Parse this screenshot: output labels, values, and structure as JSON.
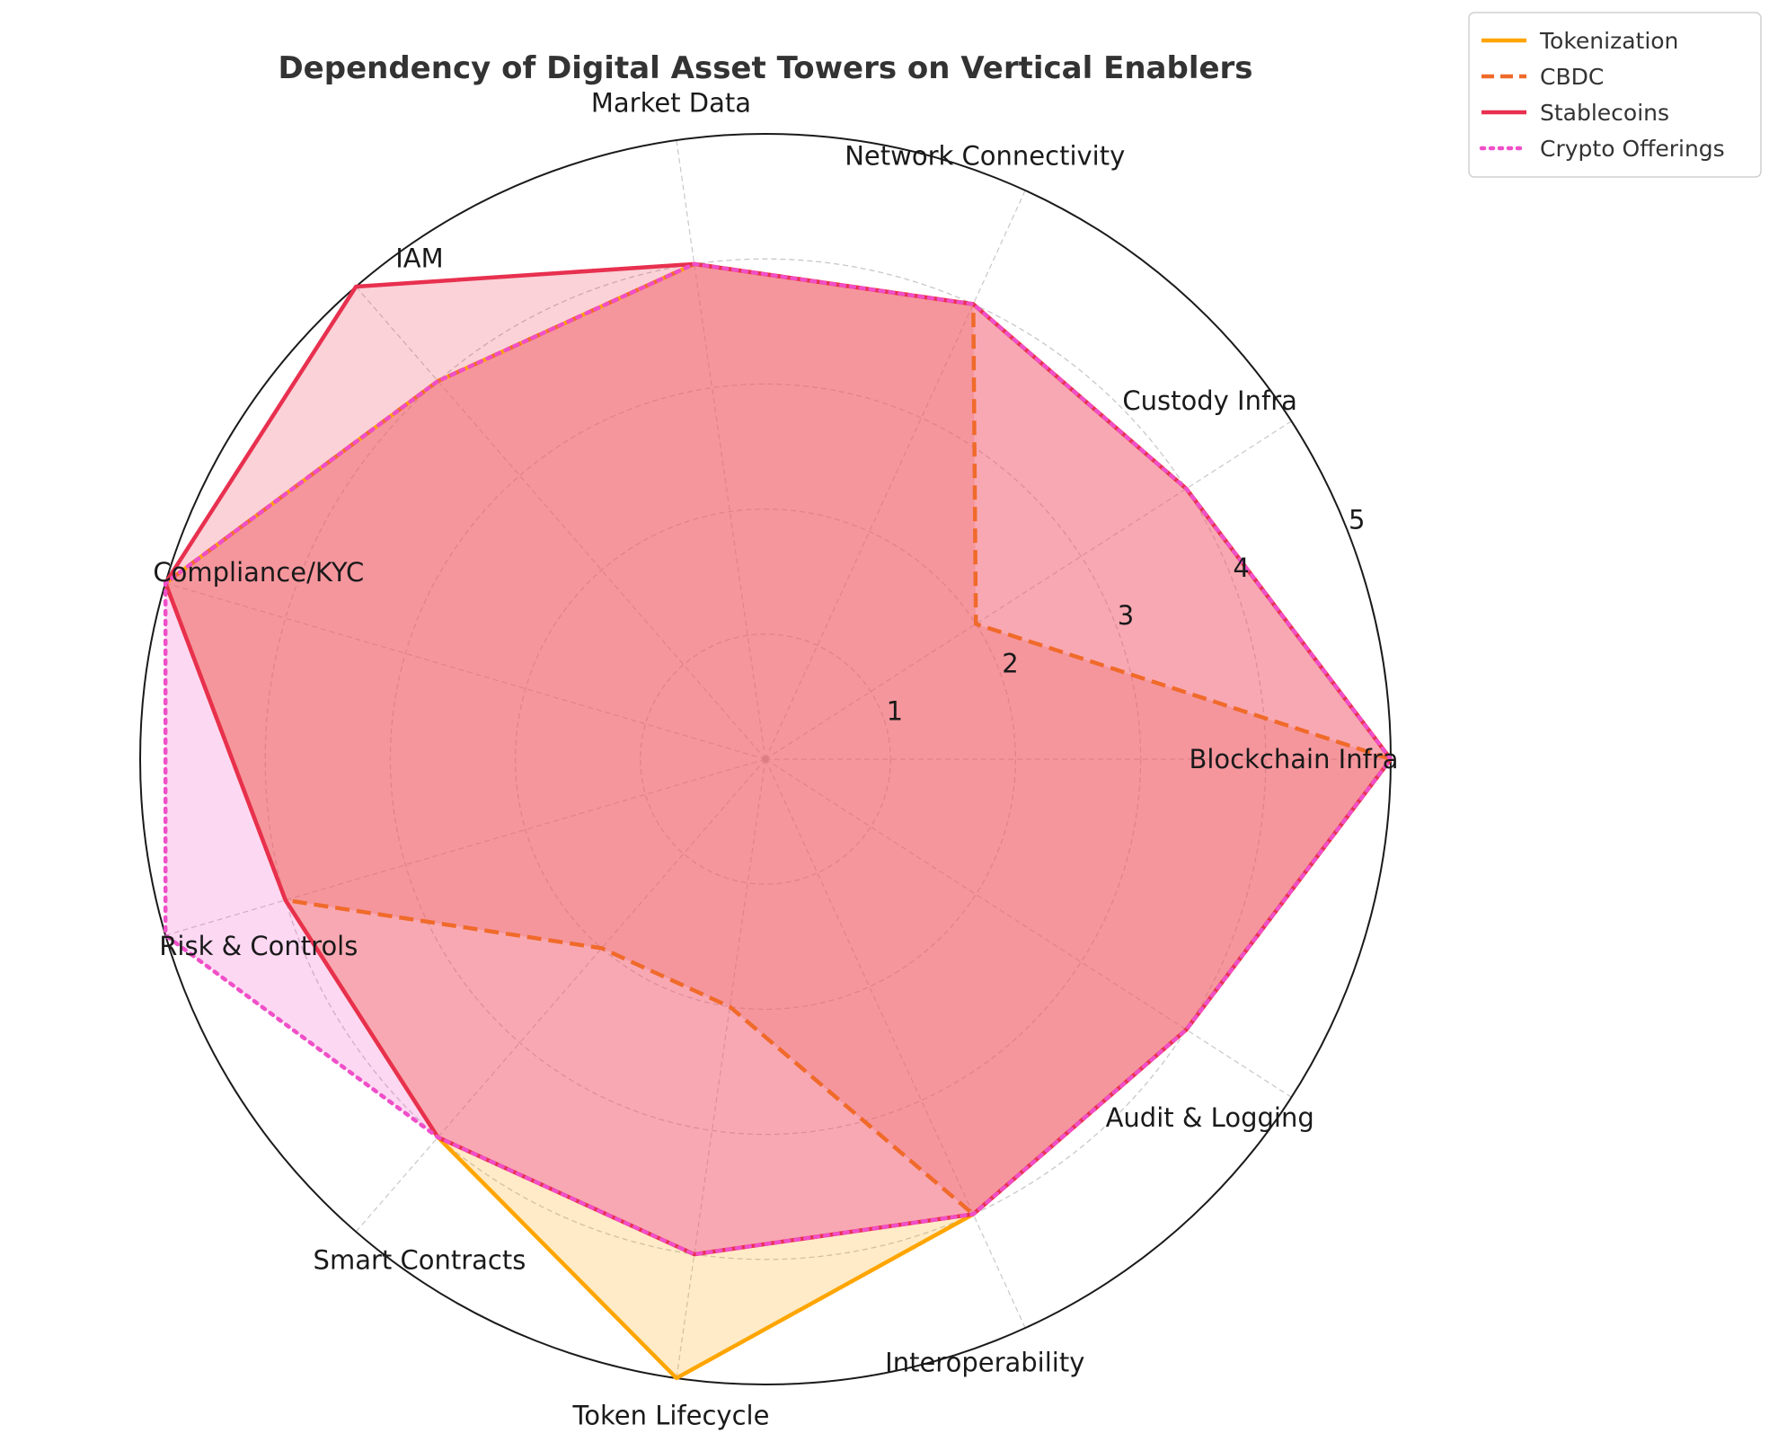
{
  "chart_data": {
    "type": "radar",
    "title": "Dependency of Digital Asset Towers on Vertical Enablers",
    "categories": [
      "Blockchain Infra",
      "Custody Infra",
      "Network Connectivity",
      "Market Data",
      "IAM",
      "Compliance/KYC",
      "Risk & Controls",
      "Smart Contracts",
      "Token Lifecycle",
      "Interoperability",
      "Audit & Logging"
    ],
    "rlim": [
      0,
      5
    ],
    "rticks": [
      "1",
      "2",
      "3",
      "4",
      "5"
    ],
    "grid": true,
    "legend_position": "top-right",
    "series": [
      {
        "name": "Tokenization",
        "values": [
          5,
          4,
          4,
          4,
          4,
          5,
          4,
          4,
          5,
          4,
          4
        ],
        "color": "#FFA500",
        "style": "solid"
      },
      {
        "name": "CBDC",
        "values": [
          5,
          2,
          4,
          4,
          4,
          5,
          4,
          2,
          2,
          4,
          4
        ],
        "color": "#F06A2A",
        "style": "dashed"
      },
      {
        "name": "Stablecoins",
        "values": [
          5,
          4,
          4,
          4,
          5,
          5,
          4,
          4,
          4,
          4,
          4
        ],
        "color": "#E8304F",
        "style": "solid"
      },
      {
        "name": "Crypto Offerings",
        "values": [
          5,
          4,
          4,
          4,
          4,
          5,
          5,
          4,
          4,
          4,
          4
        ],
        "color": "#F04FC8",
        "style": "dotted"
      }
    ]
  }
}
